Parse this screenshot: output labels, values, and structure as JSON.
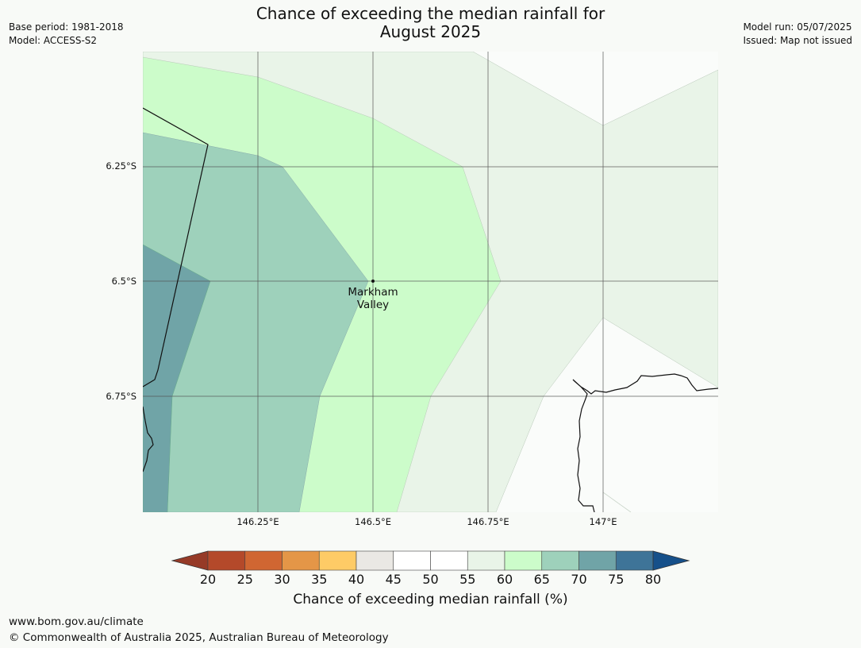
{
  "title": {
    "line1": "Chance of exceeding the median rainfall for",
    "line2": "August 2025"
  },
  "meta_left": {
    "base_period": "Base period: 1981-2018",
    "model": "Model: ACCESS-S2"
  },
  "meta_right": {
    "model_run": "Model run: 05/07/2025",
    "issued": "Issued: Map not issued"
  },
  "map": {
    "latitude_labels": [
      "6.25°S",
      "6.5°S",
      "6.75°S"
    ],
    "longitude_labels": [
      "146.25°E",
      "146.5°E",
      "146.75°E",
      "147°E"
    ],
    "place": {
      "line1": "Markham",
      "line2": "Valley"
    },
    "zone_colors": {
      "55-60": "#e9f4e8",
      "60-65": "#ccfcca",
      "65-70": "#9ed1bb",
      "70-75": "#70a4a7",
      "50-55": "#fafcfa"
    }
  },
  "colorbar": {
    "ticks": [
      "20",
      "25",
      "30",
      "35",
      "40",
      "45",
      "50",
      "55",
      "60",
      "65",
      "70",
      "75",
      "80"
    ],
    "colors": [
      "#b4492a",
      "#d06632",
      "#e49647",
      "#fecb66",
      "#eae8e4",
      "#ffffff",
      "#ffffff",
      "#e9f4e8",
      "#ccfcca",
      "#9ed1bb",
      "#70a4a7",
      "#3e7498"
    ],
    "under_color": "#963a27",
    "over_color": "#16508a",
    "label": "Chance of exceeding median rainfall (%)"
  },
  "footer": {
    "url": "www.bom.gov.au/climate",
    "copyright": "© Commonwealth of Australia 2025, Australian Bureau of Meteorology"
  }
}
